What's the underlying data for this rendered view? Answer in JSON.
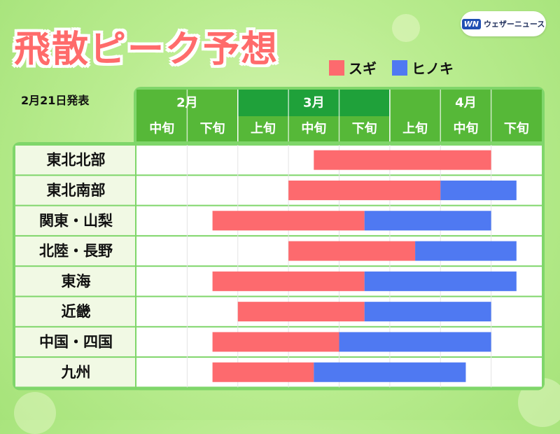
{
  "header": {
    "title": "飛散ピーク予想",
    "date": "2月21日発表",
    "brand": {
      "badge": "WN",
      "name": "ウェザーニュース"
    }
  },
  "colors": {
    "sugi": "#fd6a6e",
    "hinoki": "#4f79f2",
    "header_green": "#56b838",
    "header_dark_green": "#1fa13a",
    "frame_green": "#7fd66a"
  },
  "chart_data": {
    "type": "gantt",
    "title": "飛散ピーク予想",
    "period_unit": "旬 (10-day period); 0 = 2月中旬 start, 8 = end of 4月下旬",
    "months": [
      {
        "label": "2月",
        "span": 2
      },
      {
        "label": "3月",
        "span": 3
      },
      {
        "label": "4月",
        "span": 3
      }
    ],
    "periods": [
      "中旬",
      "下旬",
      "上旬",
      "中旬",
      "下旬",
      "上旬",
      "中旬",
      "下旬"
    ],
    "series": [
      {
        "name": "スギ",
        "color": "#fd6a6e"
      },
      {
        "name": "ヒノキ",
        "color": "#4f79f2"
      }
    ],
    "regions": [
      {
        "name": "東北北部",
        "sugi": [
          3.5,
          7.0
        ],
        "hinoki": null
      },
      {
        "name": "東北南部",
        "sugi": [
          3.0,
          6.0
        ],
        "hinoki": [
          6.0,
          7.5
        ]
      },
      {
        "name": "関東・山梨",
        "sugi": [
          1.5,
          4.5
        ],
        "hinoki": [
          4.5,
          7.0
        ]
      },
      {
        "name": "北陸・長野",
        "sugi": [
          3.0,
          5.5
        ],
        "hinoki": [
          5.5,
          7.5
        ]
      },
      {
        "name": "東海",
        "sugi": [
          1.5,
          4.5
        ],
        "hinoki": [
          4.5,
          7.5
        ]
      },
      {
        "name": "近畿",
        "sugi": [
          2.0,
          4.5
        ],
        "hinoki": [
          4.5,
          7.0
        ]
      },
      {
        "name": "中国・四国",
        "sugi": [
          1.5,
          4.0
        ],
        "hinoki": [
          4.0,
          7.0
        ]
      },
      {
        "name": "九州",
        "sugi": [
          1.5,
          3.5
        ],
        "hinoki": [
          3.5,
          6.5
        ]
      }
    ]
  }
}
